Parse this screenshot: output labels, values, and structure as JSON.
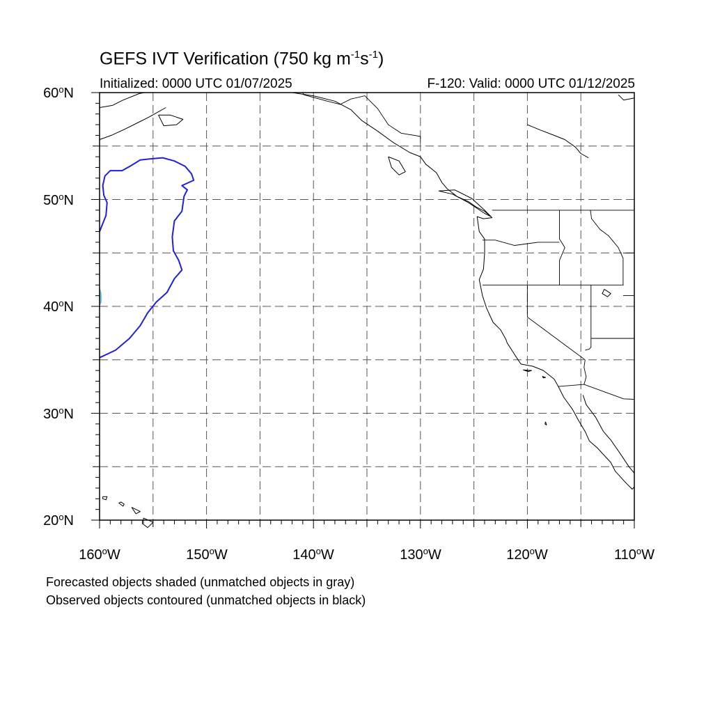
{
  "title": {
    "main": "GEFS IVT Verification (750 kg m",
    "exp1": "-1",
    "mid": "s",
    "exp2": "-1",
    "close": ")"
  },
  "initialized": "Initialized: 0000 UTC 01/07/2025",
  "valid": "F-120: Valid: 0000 UTC 01/12/2025",
  "lat_labels": [
    {
      "num": "60",
      "deg": "o",
      "hem": "N",
      "lat": 60
    },
    {
      "num": "50",
      "deg": "o",
      "hem": "N",
      "lat": 50
    },
    {
      "num": "40",
      "deg": "o",
      "hem": "N",
      "lat": 40
    },
    {
      "num": "30",
      "deg": "o",
      "hem": "N",
      "lat": 30
    },
    {
      "num": "20",
      "deg": "o",
      "hem": "N",
      "lat": 20
    }
  ],
  "lon_labels": [
    {
      "num": "160",
      "deg": "o",
      "hem": "W",
      "lon": -160
    },
    {
      "num": "150",
      "deg": "o",
      "hem": "W",
      "lon": -150
    },
    {
      "num": "140",
      "deg": "o",
      "hem": "W",
      "lon": -140
    },
    {
      "num": "130",
      "deg": "o",
      "hem": "W",
      "lon": -130
    },
    {
      "num": "120",
      "deg": "o",
      "hem": "W",
      "lon": -120
    },
    {
      "num": "110",
      "deg": "o",
      "hem": "W",
      "lon": -110
    }
  ],
  "legend_notes": [
    "Forecasted objects shaded (unmatched objects in gray)",
    "Observed objects contoured (unmatched objects in black)"
  ],
  "map": {
    "lon_range": [
      -160,
      -110
    ],
    "lat_range": [
      20,
      60
    ],
    "grid_lons": [
      -155,
      -150,
      -145,
      -140,
      -135,
      -130,
      -125,
      -120,
      -115
    ],
    "grid_lats": [
      25,
      30,
      35,
      40,
      45,
      50,
      55
    ],
    "colors": {
      "observed_contour": "#1f1fe0",
      "forecast_shade": "#6ec6e8",
      "coast": "#000000",
      "grid": "#555555"
    },
    "observed_object": [
      [
        -160,
        35.2
      ],
      [
        -158.5,
        35.9
      ],
      [
        -157.2,
        37.0
      ],
      [
        -156.2,
        38.2
      ],
      [
        -155.5,
        39.4
      ],
      [
        -154.7,
        40.4
      ],
      [
        -153.7,
        41.3
      ],
      [
        -153.0,
        42.6
      ],
      [
        -152.3,
        43.4
      ],
      [
        -152.6,
        44.3
      ],
      [
        -153.1,
        45.2
      ],
      [
        -153.2,
        46.5
      ],
      [
        -153.0,
        48.0
      ],
      [
        -152.3,
        48.9
      ],
      [
        -152.1,
        50.3
      ],
      [
        -151.8,
        50.9
      ],
      [
        -152.3,
        51.3
      ],
      [
        -151.2,
        51.8
      ],
      [
        -151.4,
        52.4
      ],
      [
        -152.0,
        53.1
      ],
      [
        -153.0,
        53.6
      ],
      [
        -154.1,
        53.9
      ],
      [
        -155.3,
        53.8
      ],
      [
        -156.2,
        53.7
      ],
      [
        -157.0,
        53.2
      ],
      [
        -157.9,
        52.7
      ],
      [
        -159.0,
        52.7
      ],
      [
        -159.5,
        52.2
      ],
      [
        -159.7,
        51.3
      ],
      [
        -159.6,
        50.4
      ],
      [
        -159.3,
        49.7
      ],
      [
        -159.4,
        48.5
      ],
      [
        -160,
        47.0
      ]
    ],
    "forecast_object": [
      [
        -160,
        41.8
      ],
      [
        -159.8,
        41.2
      ],
      [
        -159.8,
        40.4
      ],
      [
        -160,
        40.0
      ]
    ],
    "coastline": [
      [
        -142.0,
        60.0
      ],
      [
        -140.0,
        59.7
      ],
      [
        -138.0,
        59.2
      ],
      [
        -136.5,
        58.4
      ],
      [
        -135.5,
        57.4
      ],
      [
        -134.0,
        56.4
      ],
      [
        -132.5,
        55.3
      ],
      [
        -131.0,
        54.4
      ],
      [
        -130.0,
        54.0
      ],
      [
        -129.5,
        53.3
      ],
      [
        -128.5,
        52.5
      ],
      [
        -128.0,
        51.6
      ],
      [
        -127.5,
        51.0
      ],
      [
        -126.6,
        50.3
      ],
      [
        -125.5,
        49.8
      ],
      [
        -124.8,
        49.3
      ],
      [
        -124.0,
        48.9
      ],
      [
        -123.3,
        48.3
      ],
      [
        -124.1,
        48.2
      ],
      [
        -124.7,
        48.4
      ],
      [
        -124.5,
        47.0
      ],
      [
        -124.0,
        46.3
      ],
      [
        -124.0,
        45.0
      ],
      [
        -124.1,
        43.5
      ],
      [
        -124.5,
        42.5
      ],
      [
        -124.2,
        41.0
      ],
      [
        -123.8,
        39.8
      ],
      [
        -123.2,
        38.5
      ],
      [
        -122.5,
        37.8
      ],
      [
        -122.0,
        36.9
      ],
      [
        -121.9,
        36.6
      ],
      [
        -121.0,
        35.2
      ],
      [
        -120.6,
        34.6
      ],
      [
        -119.5,
        34.4
      ],
      [
        -118.5,
        34.0
      ],
      [
        -117.5,
        33.2
      ],
      [
        -117.1,
        32.5
      ],
      [
        -116.6,
        31.5
      ],
      [
        -115.8,
        30.4
      ],
      [
        -115.2,
        29.3
      ],
      [
        -114.6,
        28.3
      ],
      [
        -114.2,
        27.4
      ],
      [
        -113.5,
        26.8
      ],
      [
        -112.2,
        25.4
      ],
      [
        -111.8,
        24.6
      ],
      [
        -110.8,
        23.5
      ],
      [
        -110.2,
        22.9
      ],
      [
        -110.0,
        23.1
      ]
    ],
    "gulf_of_california": [
      [
        -114.8,
        31.7
      ],
      [
        -114.5,
        30.8
      ],
      [
        -113.6,
        29.6
      ],
      [
        -112.9,
        28.3
      ],
      [
        -112.2,
        27.5
      ],
      [
        -111.3,
        26.2
      ],
      [
        -110.5,
        25.0
      ],
      [
        -110.0,
        24.4
      ]
    ],
    "alaska_coast": [
      [
        -160.0,
        58.6
      ],
      [
        -158.8,
        58.8
      ],
      [
        -157.8,
        59.3
      ],
      [
        -156.3,
        59.9
      ],
      [
        -155.8,
        60.0
      ]
    ],
    "alaska_peninsula": [
      [
        -160.0,
        55.6
      ],
      [
        -158.9,
        56.0
      ],
      [
        -157.6,
        56.6
      ],
      [
        -156.4,
        57.2
      ],
      [
        -155.4,
        57.7
      ],
      [
        -154.5,
        58.2
      ],
      [
        -153.8,
        58.6
      ]
    ],
    "kodiak": [
      [
        -154.5,
        57.9
      ],
      [
        -153.4,
        57.9
      ],
      [
        -152.2,
        57.5
      ],
      [
        -152.8,
        57.0
      ],
      [
        -154.0,
        56.9
      ],
      [
        -154.5,
        57.9
      ]
    ],
    "hudson_bay_edge": [
      [
        -110.0,
        59.5
      ],
      [
        -111.0,
        59.3
      ],
      [
        -111.5,
        59.8
      ]
    ],
    "haida_gwaii": [
      [
        -133.0,
        54.0
      ],
      [
        -132.0,
        53.6
      ],
      [
        -131.4,
        52.6
      ],
      [
        -132.0,
        52.3
      ],
      [
        -132.7,
        53.0
      ],
      [
        -133.0,
        54.0
      ]
    ],
    "vancouver_island": [
      [
        -128.3,
        50.8
      ],
      [
        -127.0,
        50.5
      ],
      [
        -125.5,
        49.7
      ],
      [
        -124.0,
        48.7
      ],
      [
        -123.4,
        48.4
      ],
      [
        -124.0,
        49.0
      ],
      [
        -125.2,
        50.1
      ],
      [
        -126.8,
        50.9
      ],
      [
        -128.3,
        50.8
      ]
    ],
    "hawaii": [
      [
        [
          -159.7,
          22.2
        ],
        [
          -159.3,
          22.2
        ],
        [
          -159.4,
          21.9
        ],
        [
          -159.7,
          22.0
        ],
        [
          -159.7,
          22.2
        ]
      ],
      [
        [
          -158.2,
          21.6
        ],
        [
          -157.8,
          21.3
        ],
        [
          -157.7,
          21.5
        ],
        [
          -158.0,
          21.7
        ],
        [
          -158.2,
          21.6
        ]
      ],
      [
        [
          -157.0,
          21.2
        ],
        [
          -156.6,
          21.0
        ],
        [
          -156.2,
          20.8
        ],
        [
          -156.6,
          20.6
        ],
        [
          -157.0,
          21.2
        ]
      ],
      [
        [
          -155.9,
          20.2
        ],
        [
          -155.0,
          19.8
        ],
        [
          -155.5,
          19.3
        ],
        [
          -155.9,
          19.6
        ],
        [
          -155.9,
          20.2
        ]
      ]
    ],
    "channel_islands": [
      [
        [
          -120.4,
          34.05
        ],
        [
          -119.6,
          34.0
        ],
        [
          -119.9,
          33.9
        ],
        [
          -120.4,
          34.05
        ]
      ],
      [
        [
          -118.6,
          33.45
        ],
        [
          -118.3,
          33.35
        ],
        [
          -118.5,
          33.3
        ],
        [
          -118.6,
          33.45
        ]
      ]
    ],
    "guadalupe_island": [
      [
        -118.3,
        29.2
      ],
      [
        -118.2,
        28.9
      ],
      [
        -118.35,
        29.0
      ],
      [
        -118.3,
        29.2
      ]
    ],
    "great_salt_lake": [
      [
        -112.8,
        41.6
      ],
      [
        -112.2,
        41.2
      ],
      [
        -112.5,
        40.9
      ],
      [
        -113.0,
        41.2
      ],
      [
        -112.8,
        41.6
      ]
    ],
    "borders": [
      [
        [
          -123.3,
          49.0
        ],
        [
          -110.0,
          49.0
        ]
      ],
      [
        [
          -141.0,
          60.0
        ],
        [
          -140.9,
          59.8
        ],
        [
          -138.7,
          59.2
        ],
        [
          -137.5,
          58.9
        ],
        [
          -136.5,
          59.4
        ],
        [
          -135.2,
          59.7
        ],
        [
          -134.0,
          58.5
        ],
        [
          -133.0,
          57.0
        ],
        [
          -131.8,
          56.2
        ],
        [
          -130.0,
          55.9
        ],
        [
          -130.0,
          55.3
        ]
      ],
      [
        [
          -124.2,
          42.0
        ],
        [
          -111.0,
          42.0
        ]
      ],
      [
        [
          -120.0,
          42.0
        ],
        [
          -120.0,
          39.0
        ],
        [
          -114.6,
          35.0
        ]
      ],
      [
        [
          -114.6,
          35.0
        ],
        [
          -114.7,
          34.3
        ],
        [
          -114.5,
          33.4
        ],
        [
          -114.7,
          32.7
        ]
      ],
      [
        [
          -117.1,
          32.5
        ],
        [
          -114.7,
          32.7
        ],
        [
          -111.0,
          31.35
        ],
        [
          -110.0,
          31.3
        ]
      ],
      [
        [
          -124.2,
          46.2
        ],
        [
          -123.0,
          46.2
        ],
        [
          -121.2,
          45.7
        ],
        [
          -119.0,
          46.0
        ],
        [
          -117.0,
          46.0
        ]
      ],
      [
        [
          -117.0,
          49.0
        ],
        [
          -117.0,
          46.3
        ],
        [
          -116.5,
          45.5
        ],
        [
          -117.0,
          44.3
        ],
        [
          -117.0,
          42.0
        ]
      ],
      [
        [
          -114.1,
          49.0
        ],
        [
          -114.0,
          48.2
        ],
        [
          -113.2,
          47.2
        ],
        [
          -112.4,
          46.6
        ],
        [
          -111.5,
          45.5
        ],
        [
          -111.05,
          44.5
        ],
        [
          -111.05,
          42.0
        ]
      ],
      [
        [
          -114.05,
          42.0
        ],
        [
          -114.05,
          36.2
        ],
        [
          -114.2,
          36.0
        ],
        [
          -114.6,
          35.9
        ]
      ],
      [
        [
          -114.05,
          37.0
        ],
        [
          -110.0,
          37.0
        ]
      ],
      [
        [
          -111.05,
          45.0
        ],
        [
          -110.0,
          45.0
        ]
      ],
      [
        [
          -111.05,
          41.0
        ],
        [
          -110.0,
          41.0
        ]
      ]
    ],
    "canada_interior": [
      [
        -120.0,
        57.0
      ],
      [
        -118.8,
        56.5
      ],
      [
        -117.5,
        56.0
      ],
      [
        -116.5,
        55.6
      ],
      [
        -115.5,
        54.9
      ],
      [
        -115.0,
        54.3
      ],
      [
        -114.3,
        53.9
      ]
    ]
  }
}
